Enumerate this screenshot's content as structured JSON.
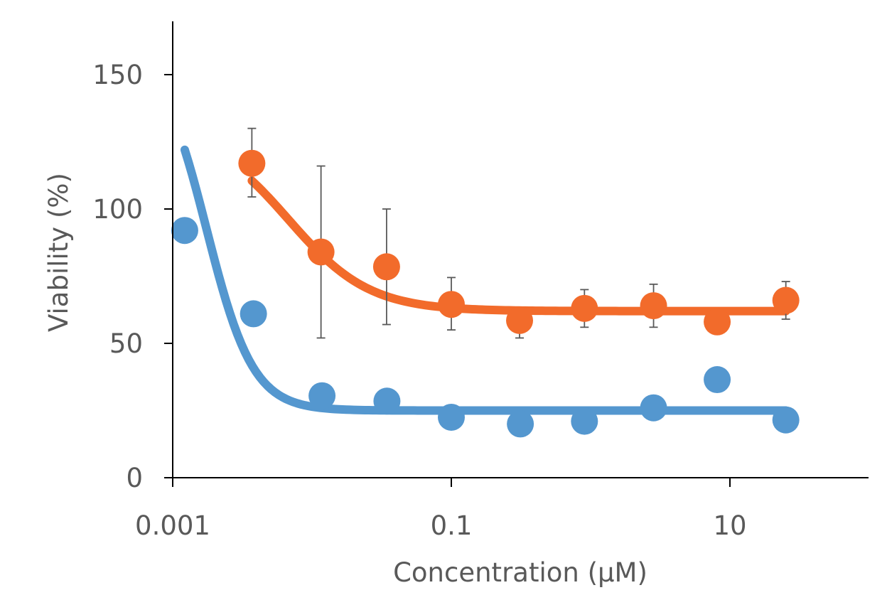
{
  "chart_data": {
    "type": "scatter",
    "xscale": "log",
    "xlim": [
      0.001,
      100
    ],
    "ylim": [
      0,
      170
    ],
    "xticks": [
      0.001,
      0.1,
      10
    ],
    "xtick_labels": [
      "0.001",
      "0.1",
      "10"
    ],
    "yticks": [
      0,
      50,
      100,
      150
    ],
    "ytick_labels": [
      "0",
      "50",
      "100",
      "150"
    ],
    "xlabel": "Concentration (μM)",
    "ylabel": "Viability (%)",
    "grid": false,
    "legend": "none",
    "series": [
      {
        "color": "#F26B2B",
        "points": [
          {
            "x": 0.0037,
            "y": 117,
            "err": [
              104.5,
              130
            ]
          },
          {
            "x": 0.0116,
            "y": 84,
            "err": [
              52,
              116
            ]
          },
          {
            "x": 0.0343,
            "y": 78.5,
            "err": [
              57,
              100
            ]
          },
          {
            "x": 0.1,
            "y": 64.5,
            "err": [
              55,
              74.5
            ]
          },
          {
            "x": 0.309,
            "y": 58.5,
            "err": [
              52,
              61
            ]
          },
          {
            "x": 0.903,
            "y": 63,
            "err": [
              56,
              70
            ]
          },
          {
            "x": 2.83,
            "y": 64,
            "err": [
              56,
              72
            ]
          },
          {
            "x": 8.1,
            "y": 58,
            "err": [
              58,
              58
            ]
          },
          {
            "x": 25.2,
            "y": 66,
            "err": [
              59,
              73
            ]
          }
        ],
        "fit": {
          "top": 130,
          "bottom": 62,
          "ec50": 0.0068,
          "hill": 1.5,
          "x_range": [
            0.0037,
            25.2
          ]
        }
      },
      {
        "color": "#5497CF",
        "points": [
          {
            "x": 0.00122,
            "y": 92
          },
          {
            "x": 0.0038,
            "y": 61
          },
          {
            "x": 0.0118,
            "y": 30.5
          },
          {
            "x": 0.0345,
            "y": 28.5
          },
          {
            "x": 0.1,
            "y": 22.5
          },
          {
            "x": 0.313,
            "y": 20
          },
          {
            "x": 0.903,
            "y": 21
          },
          {
            "x": 2.83,
            "y": 26
          },
          {
            "x": 8.1,
            "y": 36.5
          },
          {
            "x": 25.2,
            "y": 21.5
          }
        ],
        "fit": {
          "top": 160,
          "bottom": 25,
          "ec50": 0.00175,
          "hill": 2.6,
          "x_range": [
            0.00122,
            25.2
          ]
        }
      }
    ]
  }
}
